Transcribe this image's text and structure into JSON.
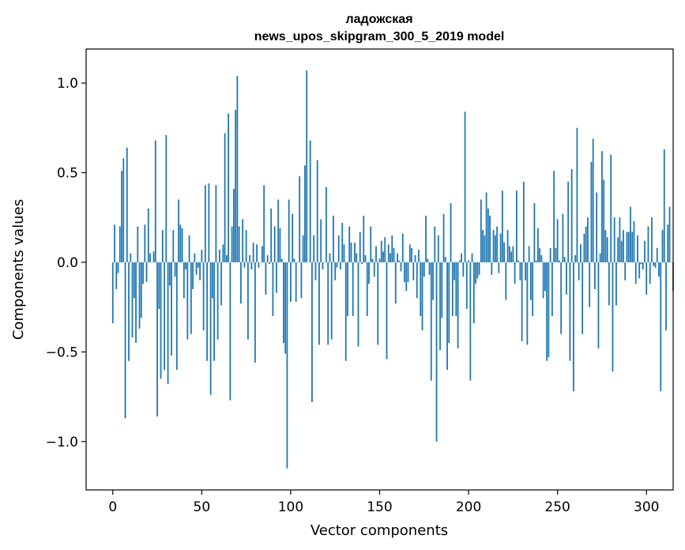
{
  "chart_data": {
    "type": "bar",
    "title_line1": "ладожская",
    "title_line2": "news_upos_skipgram_300_5_2019 model",
    "xlabel": "Vector components",
    "ylabel": "Components values",
    "xlim": [
      -15,
      315
    ],
    "ylim": [
      -1.27,
      1.19
    ],
    "xticks": [
      0,
      50,
      100,
      150,
      200,
      250,
      300
    ],
    "xtick_labels": [
      "0",
      "50",
      "100",
      "150",
      "200",
      "250",
      "300"
    ],
    "yticks": [
      -1.0,
      -0.5,
      0.0,
      0.5,
      1.0
    ],
    "ytick_labels": [
      "−1.0",
      "−0.5",
      "0.0",
      "0.5",
      "1.0"
    ],
    "bar_color": "#1f77b4",
    "values": [
      -0.34,
      0.21,
      -0.15,
      -0.06,
      0.2,
      0.51,
      0.58,
      -0.87,
      0.64,
      -0.55,
      0.05,
      -0.42,
      -0.2,
      -0.45,
      0.2,
      -0.37,
      -0.31,
      -0.12,
      0.21,
      -0.11,
      0.3,
      0.05,
      0.0,
      0.06,
      0.68,
      -0.86,
      -0.26,
      -0.65,
      0.18,
      -0.6,
      0.71,
      -0.68,
      -0.13,
      -0.52,
      0.18,
      -0.08,
      -0.6,
      0.35,
      0.21,
      0.19,
      -0.2,
      -0.04,
      -0.43,
      0.15,
      -0.4,
      -0.15,
      0.05,
      -0.07,
      -0.03,
      -0.1,
      0.07,
      -0.38,
      0.43,
      -0.55,
      0.44,
      -0.74,
      -0.2,
      -0.55,
      0.43,
      -0.43,
      0.07,
      -0.24,
      0.1,
      0.72,
      0.04,
      0.83,
      -0.77,
      0.2,
      0.41,
      0.85,
      1.04,
      0.2,
      -0.23,
      0.24,
      -0.03,
      0.18,
      -0.43,
      0.04,
      -0.04,
      0.11,
      -0.56,
      0.1,
      -0.03,
      0.0,
      0.09,
      0.43,
      -0.18,
      0.04,
      -0.01,
      0.3,
      -0.3,
      0.2,
      -0.17,
      0.35,
      0.19,
      0.02,
      -0.45,
      -0.51,
      -1.15,
      0.35,
      -0.22,
      0.27,
      0.02,
      -0.22,
      0.0,
      0.48,
      -0.2,
      0.15,
      0.54,
      1.07,
      0.0,
      0.68,
      -0.78,
      0.15,
      -0.1,
      0.57,
      -0.46,
      0.24,
      -0.04,
      0.0,
      0.42,
      -0.46,
      0.05,
      -0.43,
      0.26,
      -0.1,
      -0.03,
      0.15,
      -0.04,
      0.22,
      0.1,
      -0.55,
      -0.3,
      0.2,
      0.11,
      -0.3,
      0.11,
      0.05,
      -0.47,
      0.17,
      -0.01,
      0.26,
      0.04,
      -0.3,
      -0.12,
      0.2,
      0.02,
      -0.08,
      0.09,
      -0.46,
      0.02,
      0.12,
      0.06,
      0.14,
      -0.54,
      0.1,
      0.05,
      0.15,
      0.08,
      -0.23,
      0.05,
      0.01,
      -0.05,
      0.16,
      -0.11,
      -0.16,
      -0.11,
      0.1,
      0.08,
      -0.1,
      0.04,
      -0.2,
      0.07,
      -0.3,
      -0.38,
      -0.08,
      0.26,
      0.02,
      -0.07,
      -0.66,
      -0.21,
      0.2,
      -1.0,
      0.15,
      -0.49,
      -0.31,
      0.27,
      0.03,
      -0.6,
      -0.45,
      0.33,
      -0.3,
      -0.1,
      -0.3,
      -0.48,
      0.01,
      0.05,
      -0.08,
      0.84,
      -0.26,
      0.01,
      -0.66,
      0.05,
      -0.34,
      -0.12,
      -0.09,
      -0.07,
      0.35,
      0.18,
      0.15,
      0.39,
      0.3,
      0.26,
      -0.07,
      0.18,
      0.15,
      0.2,
      -0.06,
      0.16,
      0.4,
      0.11,
      -0.21,
      0.18,
      0.09,
      0.06,
      0.09,
      -0.12,
      0.4,
      0.01,
      -0.1,
      -0.44,
      0.45,
      -0.1,
      -0.46,
      0.09,
      -0.21,
      -0.3,
      0.33,
      0.01,
      0.19,
      0.08,
      0.04,
      -0.2,
      -0.16,
      -0.55,
      -0.53,
      0.08,
      -0.3,
      0.51,
      0.08,
      0.24,
      0.01,
      -0.4,
      0.27,
      0.03,
      -0.18,
      0.45,
      -0.55,
      0.52,
      -0.72,
      0.04,
      0.75,
      -0.1,
      0.1,
      -0.4,
      0.16,
      0.2,
      0.25,
      -0.25,
      0.56,
      0.69,
      -0.15,
      0.39,
      -0.48,
      0.05,
      0.62,
      0.46,
      0.18,
      0.14,
      -0.24,
      0.6,
      -0.61,
      0.25,
      -0.24,
      0.14,
      0.25,
      0.12,
      0.18,
      -0.1,
      0.17,
      0.17,
      0.31,
      0.17,
      0.23,
      -0.12,
      0.15,
      -0.09,
      -0.01,
      -0.04,
      0.12,
      -0.18,
      0.2,
      -0.12,
      0.25,
      -0.02,
      -0.03,
      0.08,
      -0.08,
      -0.72,
      0.18,
      0.63,
      -0.38,
      0.21,
      0.31,
      0.0,
      -0.16
    ]
  }
}
